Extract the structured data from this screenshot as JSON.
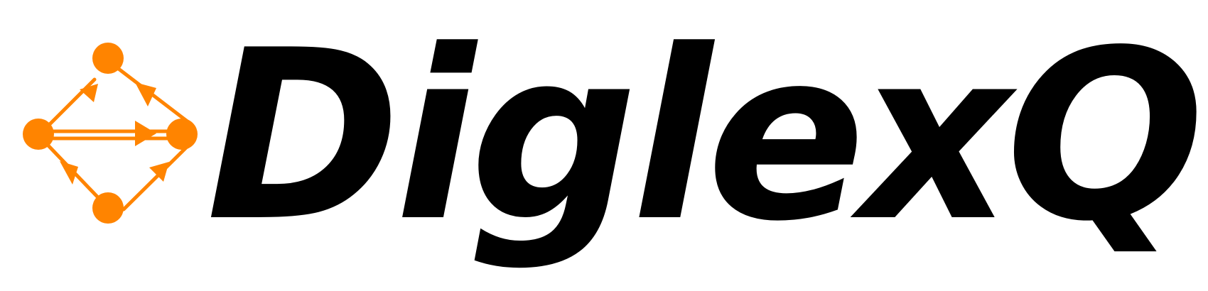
{
  "logo": {
    "wordmark": "DiglexQ",
    "icon": "directed-graph-icon",
    "colors": {
      "icon": "#ff8400",
      "text": "#000000",
      "background": "#ffffff"
    }
  }
}
